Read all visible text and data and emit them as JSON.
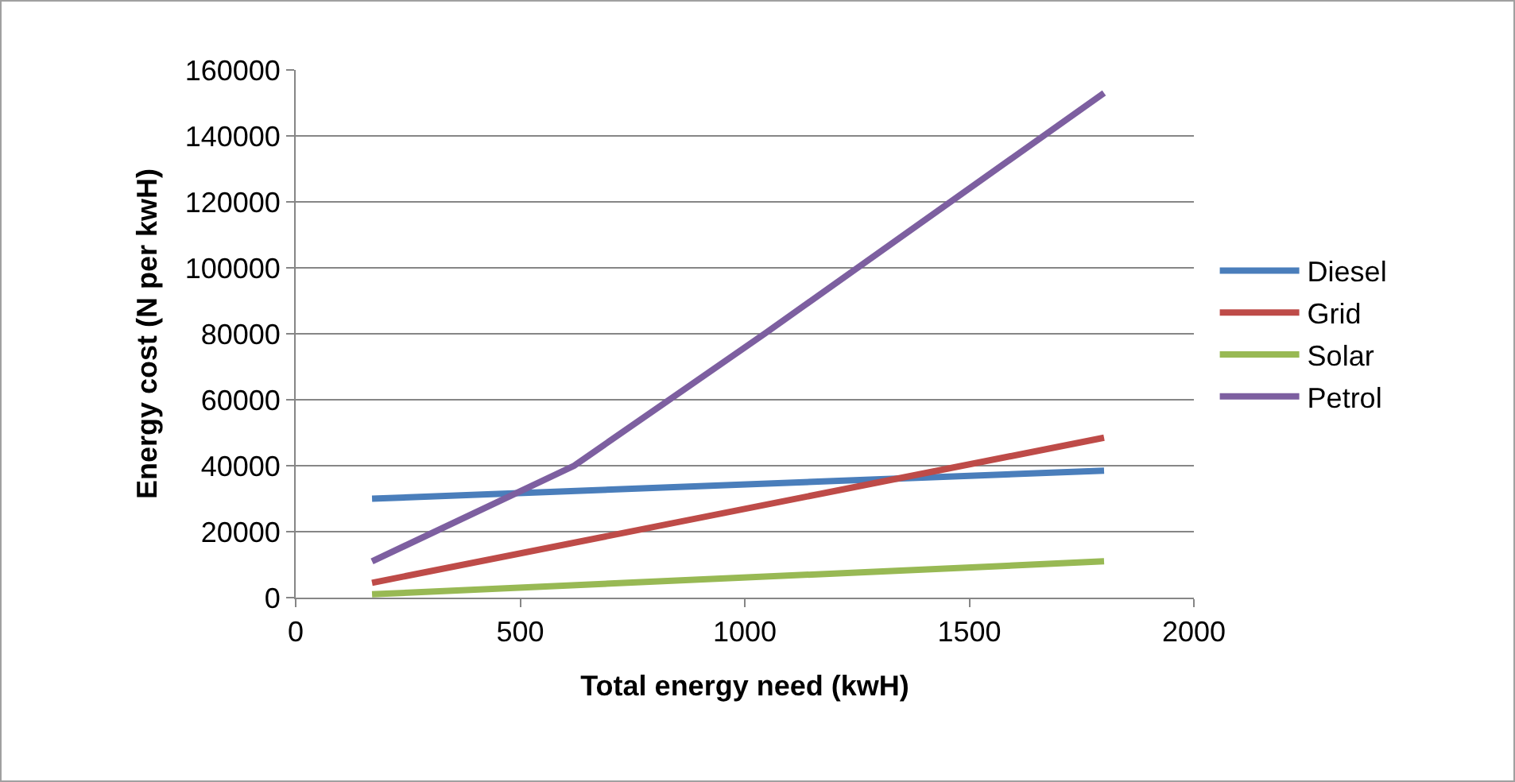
{
  "chart_data": {
    "type": "line",
    "xlabel": "Total energy need (kwH)",
    "ylabel": "Energy cost (N per kwH)",
    "series": [
      {
        "name": "Diesel",
        "color": "#4a7ebb",
        "x": [
          170,
          1800
        ],
        "values": [
          30000,
          38500
        ]
      },
      {
        "name": "Grid",
        "color": "#be4b48",
        "x": [
          170,
          1800
        ],
        "values": [
          4500,
          48500
        ]
      },
      {
        "name": "Solar",
        "color": "#98b954",
        "x": [
          170,
          1800
        ],
        "values": [
          1000,
          11000
        ]
      },
      {
        "name": "Petrol",
        "color": "#7d5fa0",
        "x": [
          170,
          620,
          1044,
          1458,
          1800
        ],
        "values": [
          11000,
          40000,
          80000,
          120000,
          153000
        ]
      }
    ],
    "xlim": [
      0,
      2000
    ],
    "xticks": [
      0,
      500,
      1000,
      1500,
      2000
    ],
    "ylim": [
      0,
      160000
    ],
    "yticks": [
      0,
      20000,
      40000,
      60000,
      80000,
      100000,
      120000,
      140000,
      160000
    ],
    "grid": "y",
    "legend": "right",
    "marker": "none",
    "line_style": "solid"
  }
}
